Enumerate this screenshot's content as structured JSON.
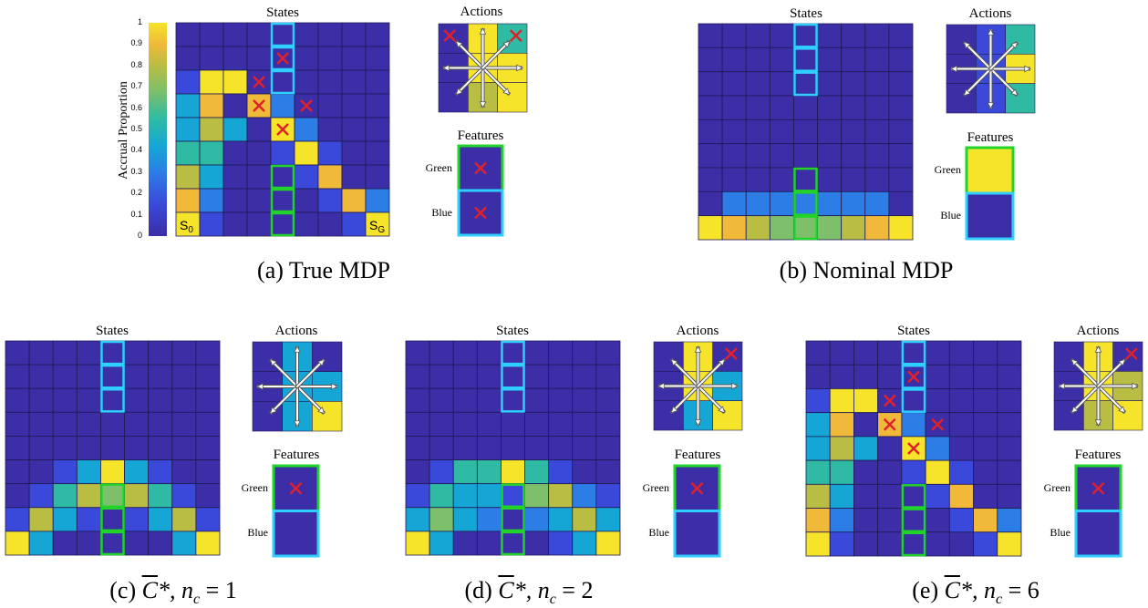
{
  "palette": [
    "#3b2ea6",
    "#3a49d9",
    "#2c7de6",
    "#16a6d6",
    "#2fbba3",
    "#7dbf6a",
    "#b9bd43",
    "#f0b93a",
    "#f5e42a"
  ],
  "colorbar": {
    "label": "Accrual Proportion",
    "ticks": [
      "1",
      "0.9",
      "0.8",
      "0.7",
      "0.6",
      "0.5",
      "0.4",
      "0.3",
      "0.2",
      "0.1",
      "0"
    ]
  },
  "panels": [
    {
      "id": "a",
      "caption": "(a) True MDP",
      "states_title": "States",
      "actions_title": "Actions",
      "features_title": "Features",
      "feature_labels": [
        "Green",
        "Blue"
      ],
      "start_label": "S",
      "start_sub": "0",
      "goal_label": "S",
      "goal_sub": "G",
      "grid": [
        [
          0,
          0,
          0,
          0,
          0,
          0,
          0,
          0,
          0
        ],
        [
          0,
          0,
          0,
          0,
          0,
          0,
          0,
          0,
          0
        ],
        [
          1,
          8,
          8,
          0,
          0,
          0,
          0,
          0,
          0
        ],
        [
          3,
          7,
          0,
          7,
          2,
          0,
          0,
          0,
          0
        ],
        [
          3,
          6,
          3,
          0,
          8,
          2,
          0,
          0,
          0
        ],
        [
          4,
          4,
          0,
          0,
          1,
          8,
          1,
          0,
          0
        ],
        [
          6,
          3,
          0,
          0,
          0,
          1,
          7,
          0,
          0
        ],
        [
          7,
          2,
          0,
          0,
          0,
          0,
          1,
          7,
          2
        ],
        [
          8,
          1,
          0,
          0,
          0,
          0,
          0,
          1,
          8
        ]
      ],
      "x_cells": [
        [
          3,
          2
        ],
        [
          4,
          1
        ],
        [
          3,
          3
        ],
        [
          5,
          3
        ],
        [
          4,
          4
        ]
      ],
      "action_cols": [
        0,
        8,
        8
      ],
      "action_right": [
        4,
        8,
        8
      ],
      "action_x": [
        "tl",
        "tr"
      ],
      "feature_x": [
        true,
        true
      ]
    },
    {
      "id": "b",
      "caption": "(b) Nominal MDP",
      "states_title": "States",
      "actions_title": "Actions",
      "features_title": "Features",
      "feature_labels": [
        "Green",
        "Blue"
      ],
      "grid": [
        [
          0,
          0,
          0,
          0,
          0,
          0,
          0,
          0,
          0
        ],
        [
          0,
          0,
          0,
          0,
          0,
          0,
          0,
          0,
          0
        ],
        [
          0,
          0,
          0,
          0,
          0,
          0,
          0,
          0,
          0
        ],
        [
          0,
          0,
          0,
          0,
          0,
          0,
          0,
          0,
          0
        ],
        [
          0,
          0,
          0,
          0,
          0,
          0,
          0,
          0,
          0
        ],
        [
          0,
          0,
          0,
          0,
          0,
          0,
          0,
          0,
          0
        ],
        [
          0,
          0,
          0,
          0,
          0,
          0,
          0,
          0,
          0
        ],
        [
          0,
          2,
          2,
          2,
          2,
          2,
          2,
          2,
          0
        ],
        [
          8,
          7,
          6,
          5,
          5,
          5,
          6,
          7,
          8
        ]
      ],
      "x_cells": [],
      "action_cols": [
        0,
        1,
        4
      ],
      "action_right": [
        4,
        8,
        4
      ],
      "action_x": [],
      "feature_x": [
        false,
        false
      ]
    },
    {
      "id": "c",
      "caption_prefix": "(c) ",
      "caption_symbol": "C",
      "caption_suffix": "*, n",
      "caption_sub": "c",
      "caption_eq": " = 1",
      "states_title": "States",
      "actions_title": "Actions",
      "features_title": "Features",
      "feature_labels": [
        "Green",
        "Blue"
      ],
      "grid": [
        [
          0,
          0,
          0,
          0,
          0,
          0,
          0,
          0,
          0
        ],
        [
          0,
          0,
          0,
          0,
          0,
          0,
          0,
          0,
          0
        ],
        [
          0,
          0,
          0,
          0,
          0,
          0,
          0,
          0,
          0
        ],
        [
          0,
          0,
          0,
          0,
          0,
          0,
          0,
          0,
          0
        ],
        [
          0,
          0,
          0,
          0,
          0,
          0,
          0,
          0,
          0
        ],
        [
          0,
          0,
          1,
          3,
          8,
          3,
          1,
          0,
          0
        ],
        [
          0,
          1,
          4,
          6,
          5,
          6,
          4,
          1,
          0
        ],
        [
          1,
          6,
          3,
          1,
          0,
          1,
          3,
          6,
          1
        ],
        [
          8,
          3,
          0,
          0,
          0,
          0,
          0,
          3,
          8
        ]
      ],
      "x_cells": [],
      "action_cols": [
        0,
        3,
        8
      ],
      "action_right": [
        0,
        3,
        8
      ],
      "action_x": [],
      "feature_x": [
        true,
        false
      ]
    },
    {
      "id": "d",
      "caption_prefix": "(d) ",
      "caption_symbol": "C",
      "caption_suffix": "*, n",
      "caption_sub": "c",
      "caption_eq": " = 2",
      "states_title": "States",
      "actions_title": "Actions",
      "features_title": "Features",
      "feature_labels": [
        "Green",
        "Blue"
      ],
      "grid": [
        [
          0,
          0,
          0,
          0,
          0,
          0,
          0,
          0,
          0
        ],
        [
          0,
          0,
          0,
          0,
          0,
          0,
          0,
          0,
          0
        ],
        [
          0,
          0,
          0,
          0,
          0,
          0,
          0,
          0,
          0
        ],
        [
          0,
          0,
          0,
          0,
          0,
          0,
          0,
          0,
          0
        ],
        [
          0,
          0,
          0,
          0,
          0,
          0,
          0,
          0,
          0
        ],
        [
          0,
          1,
          4,
          4,
          8,
          4,
          1,
          0,
          0
        ],
        [
          1,
          4,
          3,
          3,
          1,
          5,
          6,
          2,
          1
        ],
        [
          3,
          5,
          3,
          2,
          0,
          2,
          3,
          6,
          3
        ],
        [
          8,
          3,
          0,
          0,
          0,
          0,
          1,
          3,
          8
        ]
      ],
      "x_cells": [],
      "action_cols": [
        0,
        8,
        8
      ],
      "action_right": [
        0,
        3,
        8
      ],
      "action_x": [
        "tr"
      ],
      "feature_x": [
        true,
        false
      ]
    },
    {
      "id": "e",
      "caption_prefix": "(e) ",
      "caption_symbol": "C",
      "caption_suffix": "*, n",
      "caption_sub": "c",
      "caption_eq": " = 6",
      "states_title": "States",
      "actions_title": "Actions",
      "features_title": "Features",
      "feature_labels": [
        "Green",
        "Blue"
      ],
      "grid": [
        [
          0,
          0,
          0,
          0,
          0,
          0,
          0,
          0,
          0
        ],
        [
          0,
          0,
          0,
          0,
          0,
          0,
          0,
          0,
          0
        ],
        [
          1,
          8,
          8,
          0,
          0,
          0,
          0,
          0,
          0
        ],
        [
          3,
          7,
          0,
          7,
          2,
          0,
          0,
          0,
          0
        ],
        [
          3,
          6,
          3,
          0,
          8,
          2,
          0,
          0,
          0
        ],
        [
          4,
          4,
          0,
          0,
          1,
          8,
          1,
          0,
          0
        ],
        [
          6,
          3,
          0,
          0,
          0,
          1,
          7,
          0,
          0
        ],
        [
          7,
          2,
          0,
          0,
          0,
          0,
          1,
          7,
          2
        ],
        [
          8,
          1,
          0,
          0,
          0,
          0,
          0,
          1,
          8
        ]
      ],
      "x_cells": [
        [
          3,
          2
        ],
        [
          4,
          1
        ],
        [
          3,
          3
        ],
        [
          5,
          3
        ],
        [
          4,
          4
        ]
      ],
      "action_cols": [
        0,
        8,
        8
      ],
      "action_right": [
        0,
        6,
        8
      ],
      "action_x": [
        "tr"
      ],
      "feature_x": [
        true,
        false
      ]
    }
  ]
}
